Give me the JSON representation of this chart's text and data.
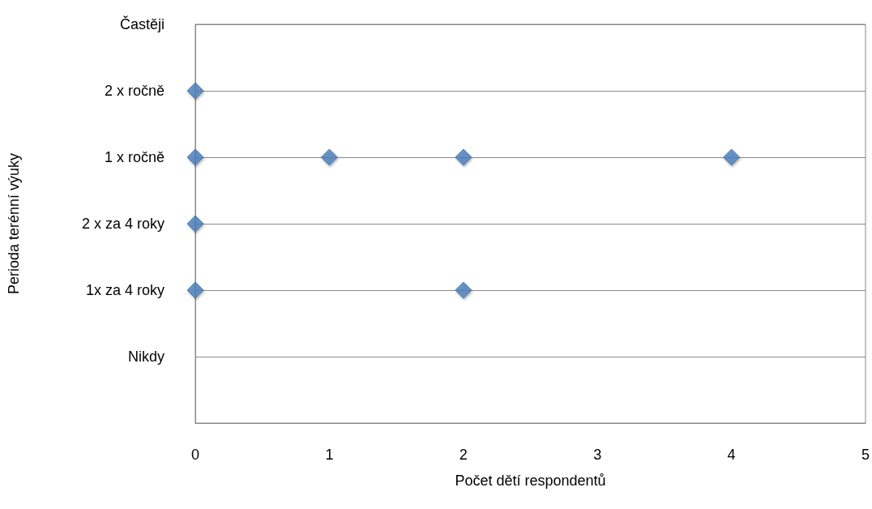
{
  "chart_data": {
    "type": "scatter",
    "orientation": "horizontal",
    "xlabel": "Počet dětí respondentů",
    "ylabel": "Perioda terénní výuky",
    "categories": [
      "Častěji",
      "2 x ročně",
      "1 x ročně",
      "2 x za 4 roky",
      "1x za 4 roky",
      "Nikdy",
      null
    ],
    "series": [
      {
        "color": "#4a7ebb",
        "values": [
          null,
          0,
          0,
          0,
          0,
          null,
          null
        ]
      },
      {
        "color": "#4a7ebb",
        "values": [
          null,
          null,
          1,
          null,
          2,
          null,
          null
        ]
      },
      {
        "color": "#4a7ebb",
        "values": [
          null,
          null,
          2,
          null,
          null,
          null,
          null
        ]
      },
      {
        "color": "#4a7ebb",
        "values": [
          null,
          null,
          4,
          null,
          null,
          null,
          null
        ]
      }
    ],
    "marker": "diamond",
    "grid": "y",
    "xlim": [
      0,
      5
    ],
    "xticks": [
      0,
      1,
      2,
      3,
      4,
      5
    ]
  }
}
